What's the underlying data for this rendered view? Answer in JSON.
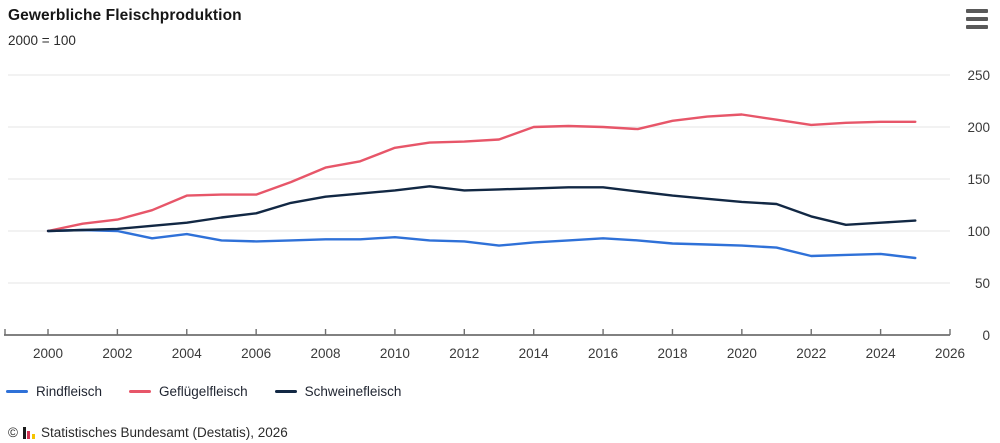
{
  "header": {
    "title": "Gewerbliche Fleischproduktion",
    "subtitle": "2000 = 100"
  },
  "menu": {
    "icon": "hamburger-menu-icon"
  },
  "chart_data": {
    "type": "line",
    "title": "Gewerbliche Fleischproduktion",
    "subtitle": "2000 = 100",
    "x": [
      2000,
      2001,
      2002,
      2003,
      2004,
      2005,
      2006,
      2007,
      2008,
      2009,
      2010,
      2011,
      2012,
      2013,
      2014,
      2015,
      2016,
      2017,
      2018,
      2019,
      2020,
      2021,
      2022,
      2023,
      2024,
      2025
    ],
    "series": [
      {
        "name": "Rindfleisch",
        "color": "#2f71d8",
        "values": [
          100,
          101,
          100,
          93,
          97,
          91,
          90,
          91,
          92,
          92,
          94,
          91,
          90,
          86,
          89,
          91,
          93,
          91,
          88,
          87,
          86,
          84,
          76,
          77,
          78,
          74
        ]
      },
      {
        "name": "Geflügelfleisch",
        "color": "#e75669",
        "values": [
          100,
          107,
          111,
          120,
          134,
          135,
          135,
          147,
          161,
          167,
          180,
          185,
          186,
          188,
          200,
          201,
          200,
          198,
          206,
          210,
          212,
          207,
          202,
          204,
          205,
          205
        ]
      },
      {
        "name": "Schweinefleisch",
        "color": "#122844",
        "values": [
          100,
          101,
          102,
          105,
          108,
          113,
          117,
          127,
          133,
          136,
          139,
          143,
          139,
          140,
          141,
          142,
          142,
          138,
          134,
          131,
          128,
          126,
          114,
          106,
          108,
          110
        ]
      }
    ],
    "xlim": [
      1998.7,
      2026
    ],
    "ylim": [
      0,
      250
    ],
    "x_ticks": [
      2000,
      2002,
      2004,
      2006,
      2008,
      2010,
      2012,
      2014,
      2016,
      2018,
      2020,
      2022,
      2024,
      2026
    ],
    "y_ticks": [
      0,
      50,
      100,
      150,
      200,
      250
    ],
    "grid": "horizontal-only",
    "legend_position": "bottom-left",
    "colors": {
      "gridline": "#ededed",
      "axis": "#6f6f6f",
      "tick_label": "#3a3a3a"
    }
  },
  "footer": {
    "copyright_symbol": "©",
    "logo": "destatis-bar-chart-logo",
    "source_text": "Statistisches Bundesamt (Destatis), 2026"
  }
}
